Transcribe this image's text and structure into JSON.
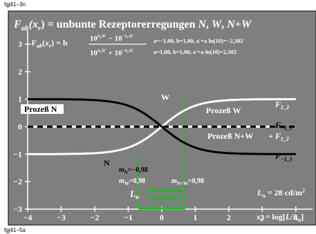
{
  "captions": {
    "top": "fgj41−3n",
    "bottom": "fgj41−5a"
  },
  "title": "F_ab(x_r) = unbunte Rezeptorerregungen N, W, N+W",
  "formula": {
    "lhs": "F_ab(x_r) = b",
    "numerator": "10^(x_r/a') − 10^(−x_r/a')",
    "denominator": "10^(x_r/a') + 10^(−x_r/a')"
  },
  "params": [
    "a=−1,00, b=1,00, a'=a ln(10)=−2,302",
    "a=1,00, b=1,00, a'=a ln(10)=2,302"
  ],
  "labels": {
    "prozess_n": "Prozeß N",
    "prozess_w": "Prozeß W",
    "prozess_nw": "Prozeß N+W",
    "n": "N",
    "w": "W",
    "mN": "m_N=−0,98",
    "mW": "m_W=0,98",
    "mNW": "m_N+W=0,98",
    "Lu": "L_u",
    "bereich1": "Bereich Büro-",
    "bereich2": "Leuchtdichte",
    "luminance": "L_u = 28 cd/m²",
    "xlabel": "x_r = log[L/L_u]"
  },
  "right_labels": [
    "F_1_2",
    "F_−1_1",
    "+ F_1_2",
    "F_−1_1"
  ],
  "colors": {
    "panel": "#7f7f7f",
    "axes": "#ffffff",
    "curve": "#000000",
    "accent": "#00cc00"
  },
  "chart_data": {
    "type": "line",
    "xlim": [
      -4,
      4.5
    ],
    "ylim": [
      -3,
      3.5
    ],
    "x_ticks": [
      "−4",
      "−3",
      "−2",
      "−1",
      "0",
      "1",
      "2",
      "3",
      "4"
    ],
    "y_ticks": [
      "3",
      "2",
      "1",
      "0",
      "−1",
      "−2",
      "−3"
    ],
    "series": [
      {
        "name": "Prozeß W",
        "a": 1.0,
        "b": 1.0,
        "style": "solid-white"
      },
      {
        "name": "Prozeß N",
        "a": -1.0,
        "b": 1.0,
        "style": "solid-black"
      },
      {
        "name": "Prozeß N+W",
        "y": 0,
        "style": "dashed"
      }
    ],
    "markers": {
      "x_left": -0.7,
      "x_right": 0.7
    },
    "green_range": [
      -0.7,
      0.7
    ]
  }
}
